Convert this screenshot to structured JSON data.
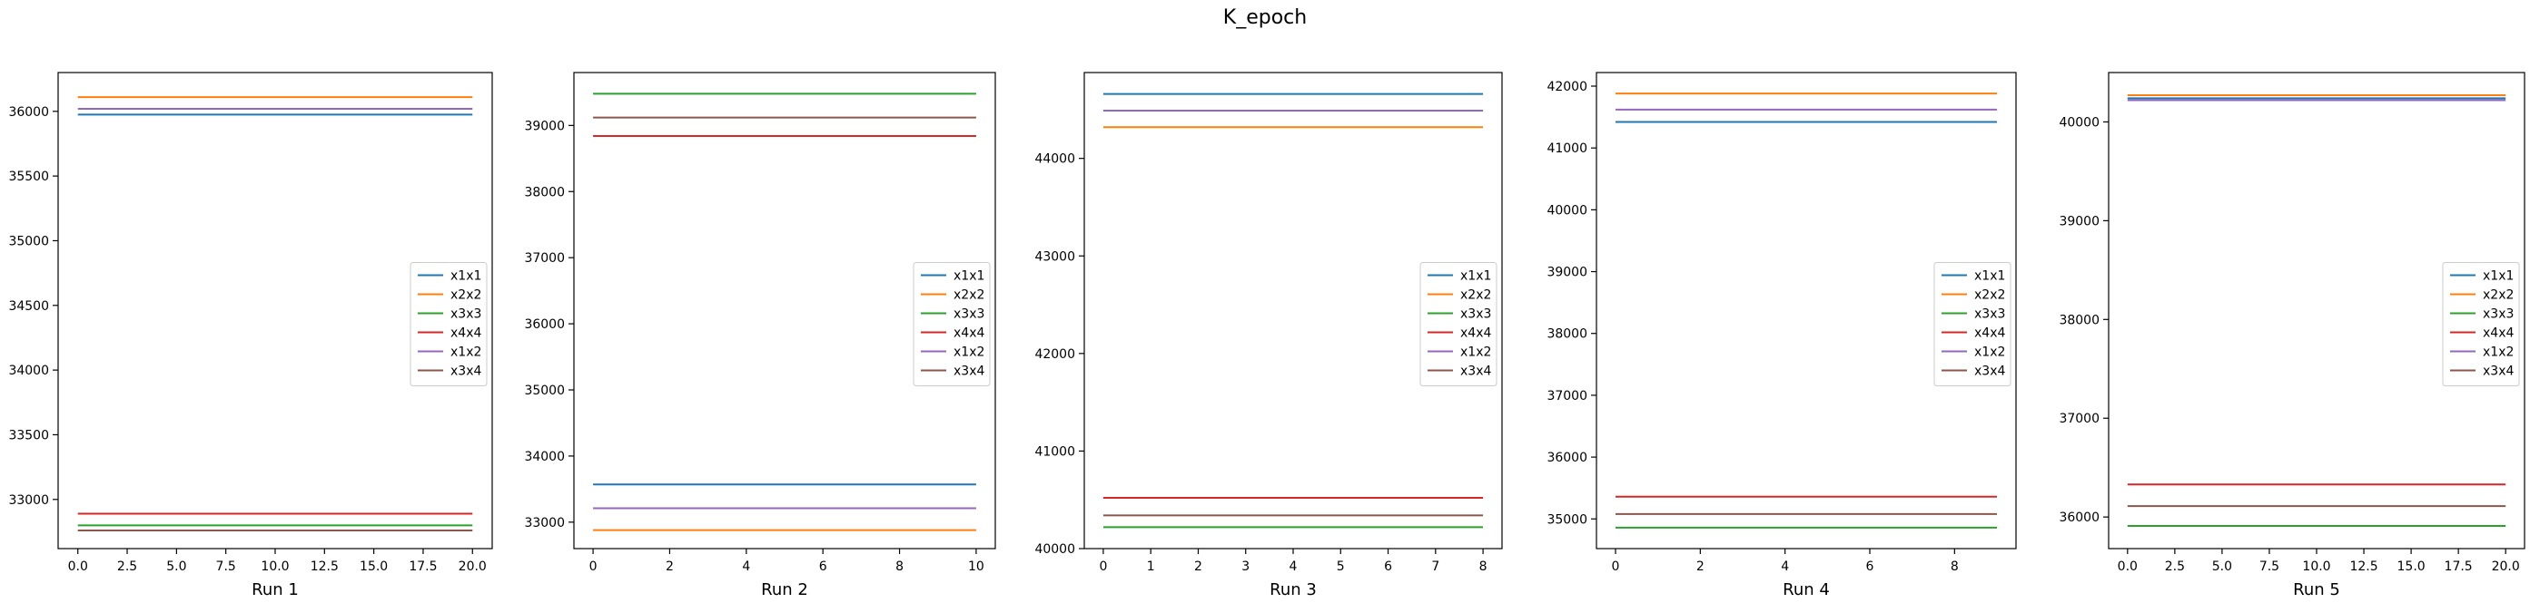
{
  "title": "K_epoch",
  "colors": {
    "x1x1": "#1f77b4",
    "x2x2": "#ff7f0e",
    "x3x3": "#2ca02c",
    "x4x4": "#d62728",
    "x1x2": "#9467bd",
    "x3x4": "#8c564b"
  },
  "chart_data": [
    {
      "type": "line",
      "xlabel": "Run 1",
      "legend": "center-right",
      "grid": false,
      "xlim": [
        -1,
        21
      ],
      "ylim": [
        32620,
        36300
      ],
      "xticks": [
        0,
        2.5,
        5,
        7.5,
        10,
        12.5,
        15,
        17.5,
        20
      ],
      "xtick_labels": [
        "0.0",
        "2.5",
        "5.0",
        "7.5",
        "10.0",
        "12.5",
        "15.0",
        "17.5",
        "20.0"
      ],
      "yticks": [
        33000,
        33500,
        34000,
        34500,
        35000,
        35500,
        36000
      ],
      "ytick_labels": [
        "33000",
        "33500",
        "34000",
        "34500",
        "35000",
        "35500",
        "36000"
      ],
      "x_range": [
        0,
        20
      ],
      "series": [
        {
          "name": "x1x1",
          "value": 35975
        },
        {
          "name": "x2x2",
          "value": 36110
        },
        {
          "name": "x3x3",
          "value": 32800
        },
        {
          "name": "x4x4",
          "value": 32890
        },
        {
          "name": "x1x2",
          "value": 36020
        },
        {
          "name": "x3x4",
          "value": 32760
        }
      ]
    },
    {
      "type": "line",
      "xlabel": "Run 2",
      "legend": "center-right",
      "grid": false,
      "xlim": [
        -0.5,
        10.5
      ],
      "ylim": [
        32600,
        39800
      ],
      "xticks": [
        0,
        2,
        4,
        6,
        8,
        10
      ],
      "xtick_labels": [
        "0",
        "2",
        "4",
        "6",
        "8",
        "10"
      ],
      "yticks": [
        33000,
        34000,
        35000,
        36000,
        37000,
        38000,
        39000
      ],
      "ytick_labels": [
        "33000",
        "34000",
        "35000",
        "36000",
        "37000",
        "38000",
        "39000"
      ],
      "x_range": [
        0,
        10
      ],
      "series": [
        {
          "name": "x1x1",
          "value": 33570
        },
        {
          "name": "x2x2",
          "value": 32880
        },
        {
          "name": "x3x3",
          "value": 39480
        },
        {
          "name": "x4x4",
          "value": 38840
        },
        {
          "name": "x1x2",
          "value": 33210
        },
        {
          "name": "x3x4",
          "value": 39120
        }
      ]
    },
    {
      "type": "line",
      "xlabel": "Run 3",
      "legend": "center-right",
      "grid": false,
      "xlim": [
        -0.4,
        8.4
      ],
      "ylim": [
        40000,
        44880
      ],
      "xticks": [
        0,
        1,
        2,
        3,
        4,
        5,
        6,
        7,
        8
      ],
      "xtick_labels": [
        "0",
        "1",
        "2",
        "3",
        "4",
        "5",
        "6",
        "7",
        "8"
      ],
      "yticks": [
        40000,
        41000,
        42000,
        43000,
        44000
      ],
      "ytick_labels": [
        "40000",
        "41000",
        "42000",
        "43000",
        "44000"
      ],
      "x_range": [
        0,
        8
      ],
      "series": [
        {
          "name": "x1x1",
          "value": 44660
        },
        {
          "name": "x2x2",
          "value": 44320
        },
        {
          "name": "x3x3",
          "value": 40220
        },
        {
          "name": "x4x4",
          "value": 40520
        },
        {
          "name": "x1x2",
          "value": 44490
        },
        {
          "name": "x3x4",
          "value": 40340
        }
      ]
    },
    {
      "type": "line",
      "xlabel": "Run 4",
      "legend": "center-right",
      "grid": false,
      "xlim": [
        -0.45,
        9.45
      ],
      "ylim": [
        34520,
        42220
      ],
      "xticks": [
        0,
        2,
        4,
        6,
        8
      ],
      "xtick_labels": [
        "0",
        "2",
        "4",
        "6",
        "8"
      ],
      "yticks": [
        35000,
        36000,
        37000,
        38000,
        39000,
        40000,
        41000,
        42000
      ],
      "ytick_labels": [
        "35000",
        "36000",
        "37000",
        "38000",
        "39000",
        "40000",
        "41000",
        "42000"
      ],
      "x_range": [
        0,
        9
      ],
      "series": [
        {
          "name": "x1x1",
          "value": 41420
        },
        {
          "name": "x2x2",
          "value": 41880
        },
        {
          "name": "x3x3",
          "value": 34860
        },
        {
          "name": "x4x4",
          "value": 35360
        },
        {
          "name": "x1x2",
          "value": 41620
        },
        {
          "name": "x3x4",
          "value": 35080
        }
      ]
    },
    {
      "type": "line",
      "xlabel": "Run 5",
      "legend": "center-right",
      "grid": false,
      "xlim": [
        -1,
        21
      ],
      "ylim": [
        35680,
        40500
      ],
      "xticks": [
        0,
        2.5,
        5,
        7.5,
        10,
        12.5,
        15,
        17.5,
        20
      ],
      "xtick_labels": [
        "0.0",
        "2.5",
        "5.0",
        "7.5",
        "10.0",
        "12.5",
        "15.0",
        "17.5",
        "20.0"
      ],
      "yticks": [
        36000,
        37000,
        38000,
        39000,
        40000
      ],
      "ytick_labels": [
        "36000",
        "37000",
        "38000",
        "39000",
        "40000"
      ],
      "x_range": [
        0,
        20
      ],
      "series": [
        {
          "name": "x1x1",
          "value": 40240
        },
        {
          "name": "x2x2",
          "value": 40270
        },
        {
          "name": "x3x3",
          "value": 35910
        },
        {
          "name": "x4x4",
          "value": 36330
        },
        {
          "name": "x1x2",
          "value": 40220
        },
        {
          "name": "x3x4",
          "value": 36110
        }
      ]
    }
  ]
}
